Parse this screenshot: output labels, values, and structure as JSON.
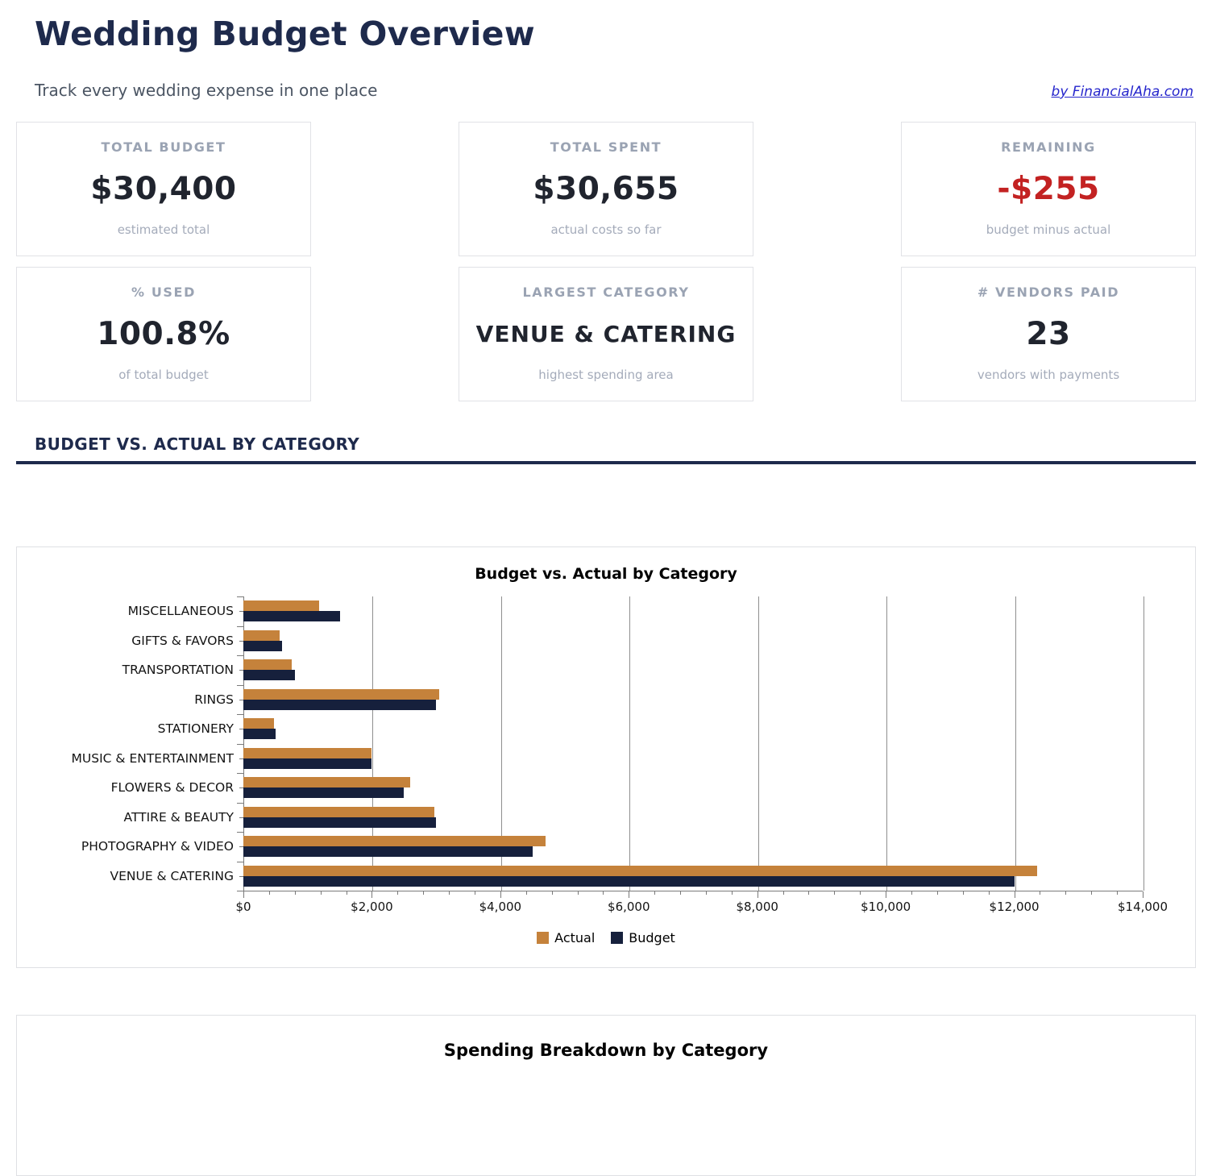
{
  "header": {
    "title": "Wedding Budget Overview",
    "subtitle": "Track every wedding expense in one place",
    "link": "by FinancialAha.com"
  },
  "stats": [
    {
      "label": "TOTAL BUDGET",
      "value": "$30,400",
      "sub": "estimated total"
    },
    {
      "label": "TOTAL SPENT",
      "value": "$30,655",
      "sub": "actual costs so far"
    },
    {
      "label": "REMAINING",
      "value": "-$255",
      "sub": "budget minus actual",
      "value_color": "#c32222"
    },
    {
      "label": "% USED",
      "value": "100.8%",
      "sub": "of total budget"
    },
    {
      "label": "LARGEST CATEGORY",
      "value": "VENUE & CATERING",
      "sub": "highest spending area"
    },
    {
      "label": "# VENDORS PAID",
      "value": "23",
      "sub": "vendors with payments"
    }
  ],
  "section": {
    "heading": "BUDGET VS. ACTUAL BY CATEGORY"
  },
  "chart_data": {
    "type": "bar",
    "orientation": "horizontal",
    "title": "Budget vs. Actual by Category",
    "categories": [
      "MISCELLANEOUS",
      "GIFTS & FAVORS",
      "TRANSPORTATION",
      "RINGS",
      "STATIONERY",
      "MUSIC & ENTERTAINMENT",
      "FLOWERS & DECOR",
      "ATTIRE & BEAUTY",
      "PHOTOGRAPHY & VIDEO",
      "VENUE & CATERING"
    ],
    "series": [
      {
        "name": "Actual",
        "color": "#c5823b",
        "values": [
          1185,
          560,
          750,
          3050,
          480,
          2000,
          2600,
          2975,
          4700,
          12355
        ]
      },
      {
        "name": "Budget",
        "color": "#16203c",
        "values": [
          1500,
          600,
          800,
          3000,
          500,
          2000,
          2500,
          3000,
          4500,
          12000
        ]
      }
    ],
    "xlim": [
      0,
      14000
    ],
    "x_ticks": [
      "$0",
      "$2,000",
      "$4,000",
      "$6,000",
      "$8,000",
      "$10,000",
      "$12,000",
      "$14,000"
    ],
    "minor_tick_step": 400,
    "grid": true,
    "legend_position": "bottom"
  },
  "next_section": {
    "title": "Spending Breakdown by Category"
  },
  "colors": {
    "heading_navy": "#1e2a4c",
    "negative_red": "#c32222",
    "link_blue": "#2626cc",
    "actual_orange": "#c5823b",
    "budget_navy": "#16203c"
  }
}
